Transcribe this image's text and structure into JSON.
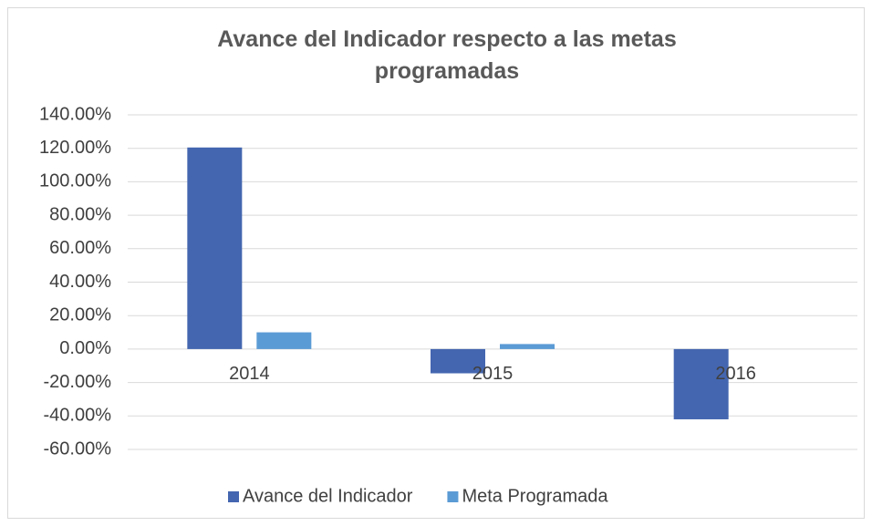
{
  "chart_data": {
    "type": "bar",
    "title": "Avance del Indicador respecto a las metas programadas",
    "categories": [
      "2014",
      "2015",
      "2016"
    ],
    "series": [
      {
        "name": "Avance del Indicador",
        "color": "#4466b0",
        "values": [
          120.5,
          -14.5,
          -42
        ]
      },
      {
        "name": "Meta Programada",
        "color": "#5b9bd5",
        "values": [
          10,
          3,
          0
        ]
      }
    ],
    "ylim": [
      -60,
      140
    ],
    "yticks": [
      {
        "value": -60,
        "label": "-60.00%"
      },
      {
        "value": -40,
        "label": "-40.00%"
      },
      {
        "value": -20,
        "label": "-20.00%"
      },
      {
        "value": 0,
        "label": "0.00%"
      },
      {
        "value": 20,
        "label": "20.00%"
      },
      {
        "value": 40,
        "label": "40.00%"
      },
      {
        "value": 60,
        "label": "60.00%"
      },
      {
        "value": 80,
        "label": "80.00%"
      },
      {
        "value": 100,
        "label": "100.00%"
      },
      {
        "value": 120,
        "label": "120.00%"
      },
      {
        "value": 140,
        "label": "140.00%"
      }
    ],
    "grid": true,
    "legend": "bottom"
  }
}
